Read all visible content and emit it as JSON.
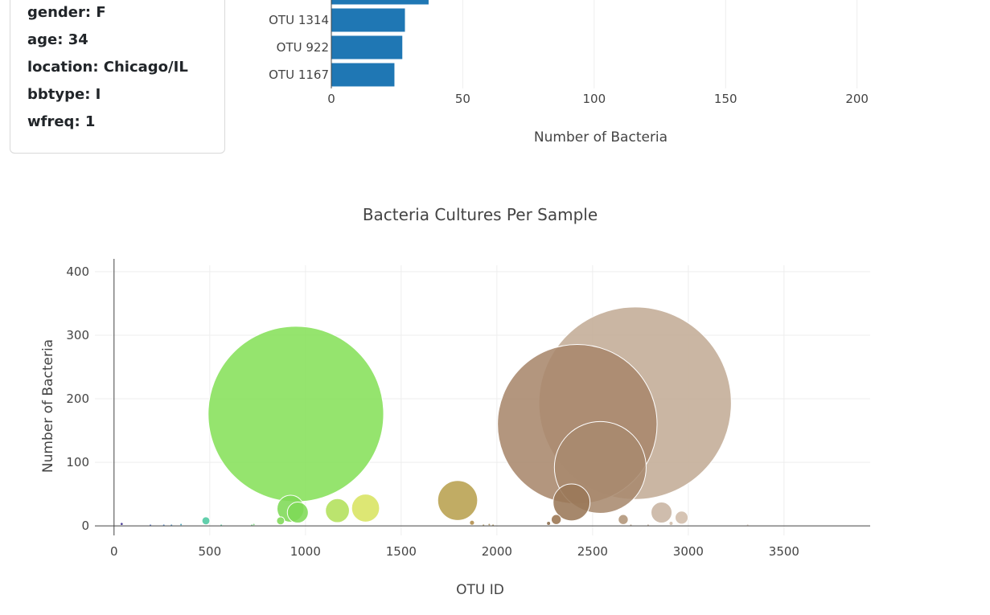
{
  "metadata_panel": {
    "items": [
      {
        "label": "gender",
        "value": "F"
      },
      {
        "label": "age",
        "value": "34"
      },
      {
        "label": "location",
        "value": "Chicago/IL"
      },
      {
        "label": "bbtype",
        "value": "I"
      },
      {
        "label": "wfreq",
        "value": "1"
      }
    ]
  },
  "chart_data": [
    {
      "type": "bar",
      "orientation": "horizontal",
      "xlabel": "Number of Bacteria",
      "xlim": [
        0,
        205
      ],
      "xticks": [
        0,
        50,
        100,
        150,
        200
      ],
      "categories": [
        "",
        "OTU 1314",
        "OTU 922",
        "OTU 1167"
      ],
      "values": [
        37,
        28,
        27,
        24
      ],
      "bar_color": "#1f77b4",
      "grid": true
    },
    {
      "type": "scatter",
      "variant": "bubble",
      "title": "Bacteria Cultures Per Sample",
      "xlabel": "OTU ID",
      "ylabel": "Number of Bacteria",
      "xlim": [
        -100,
        3950
      ],
      "ylim": [
        -15,
        410
      ],
      "xticks": [
        0,
        500,
        1000,
        1500,
        2000,
        2500,
        3000,
        3500
      ],
      "yticks": [
        0,
        100,
        200,
        300,
        400
      ],
      "grid": true,
      "points": [
        {
          "x": 40,
          "y": 3,
          "size": 3,
          "color": "#3b2f8f"
        },
        {
          "x": 190,
          "y": 1,
          "size": 1,
          "color": "#4a6bbf"
        },
        {
          "x": 260,
          "y": 1,
          "size": 1,
          "color": "#4a7fc4"
        },
        {
          "x": 300,
          "y": 1,
          "size": 1,
          "color": "#4a90c4"
        },
        {
          "x": 350,
          "y": 2,
          "size": 2,
          "color": "#3fa0b8"
        },
        {
          "x": 480,
          "y": 8,
          "size": 8,
          "color": "#4cc8a0"
        },
        {
          "x": 560,
          "y": 1,
          "size": 1,
          "color": "#5cc8a0"
        },
        {
          "x": 720,
          "y": 1,
          "size": 1,
          "color": "#6cd080"
        },
        {
          "x": 730,
          "y": 2,
          "size": 2,
          "color": "#6cd070"
        },
        {
          "x": 870,
          "y": 8,
          "size": 8,
          "color": "#7ed957"
        },
        {
          "x": 922,
          "y": 27,
          "size": 27,
          "color": "#7ed957"
        },
        {
          "x": 950,
          "y": 176,
          "size": 176,
          "color": "#86e05a"
        },
        {
          "x": 960,
          "y": 21,
          "size": 21,
          "color": "#7ed957"
        },
        {
          "x": 1167,
          "y": 24,
          "size": 24,
          "color": "#b2e05a"
        },
        {
          "x": 1314,
          "y": 28,
          "size": 28,
          "color": "#d8e461"
        },
        {
          "x": 1795,
          "y": 40,
          "size": 40,
          "color": "#b8a04e"
        },
        {
          "x": 1870,
          "y": 5,
          "size": 5,
          "color": "#b08c4a"
        },
        {
          "x": 1930,
          "y": 1,
          "size": 1,
          "color": "#a8905a"
        },
        {
          "x": 1960,
          "y": 2,
          "size": 2,
          "color": "#a8905a"
        },
        {
          "x": 1980,
          "y": 1,
          "size": 1,
          "color": "#a8905a"
        },
        {
          "x": 2270,
          "y": 4,
          "size": 4,
          "color": "#8a6a4a"
        },
        {
          "x": 2310,
          "y": 10,
          "size": 10,
          "color": "#9a7450"
        },
        {
          "x": 2390,
          "y": 37,
          "size": 37,
          "color": "#9a7858"
        },
        {
          "x": 2420,
          "y": 160,
          "size": 160,
          "color": "#a8876c"
        },
        {
          "x": 2540,
          "y": 92,
          "size": 92,
          "color": "#a88a6e"
        },
        {
          "x": 2660,
          "y": 10,
          "size": 10,
          "color": "#b09478"
        },
        {
          "x": 2700,
          "y": 1,
          "size": 1,
          "color": "#b8a088"
        },
        {
          "x": 2722,
          "y": 193,
          "size": 193,
          "color": "#c3ac96"
        },
        {
          "x": 2790,
          "y": 1,
          "size": 1,
          "color": "#c0aa95"
        },
        {
          "x": 2860,
          "y": 21,
          "size": 21,
          "color": "#c8b4a2"
        },
        {
          "x": 2910,
          "y": 4,
          "size": 4,
          "color": "#d0bcaa"
        },
        {
          "x": 2965,
          "y": 13,
          "size": 13,
          "color": "#d0bcaa"
        },
        {
          "x": 3310,
          "y": 1,
          "size": 1,
          "color": "#d8c8b8"
        }
      ]
    }
  ]
}
